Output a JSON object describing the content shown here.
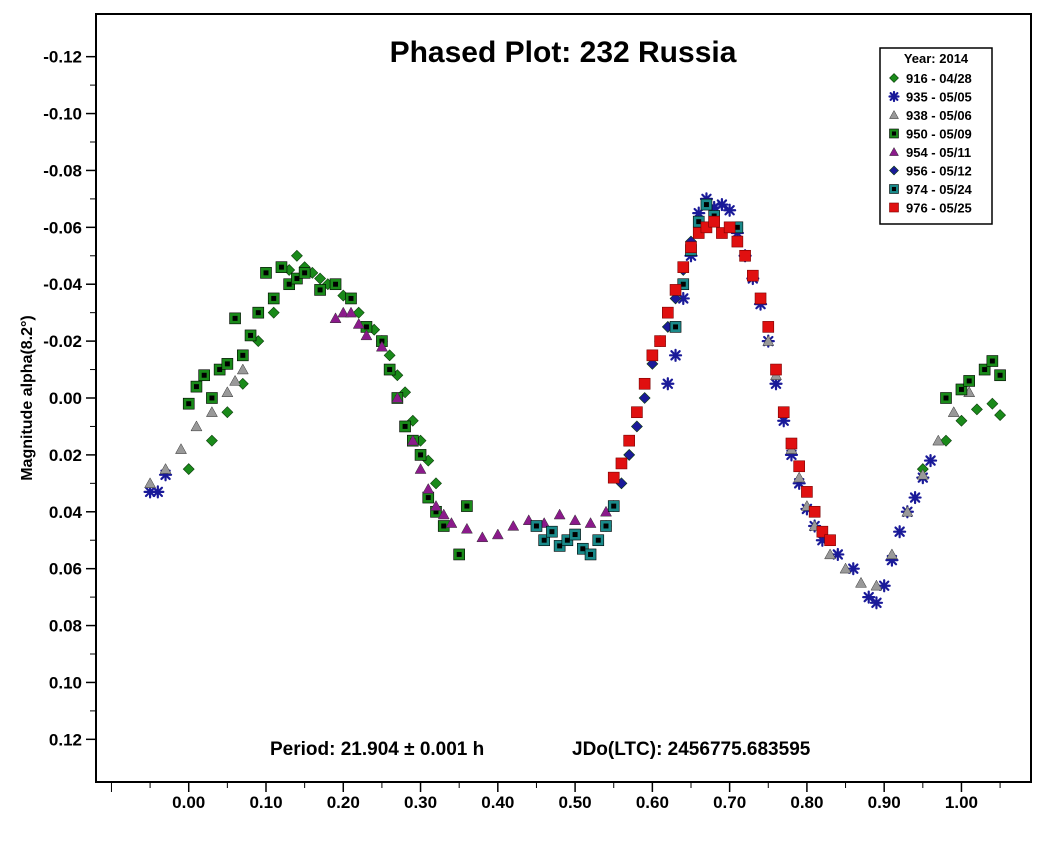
{
  "chart_data": {
    "type": "scatter",
    "title": "Phased Plot: 232 Russia",
    "xlabel": "",
    "ylabel": "Magnitude alpha(8.2°)",
    "footer_period": "Period: 21.904 ± 0.001 h",
    "footer_jdo": "JDo(LTC): 2456775.683595",
    "xlim": [
      -0.12,
      1.09
    ],
    "ylim": [
      -0.135,
      0.135
    ],
    "y_inverted": true,
    "x_ticks": [
      0.0,
      0.1,
      0.2,
      0.3,
      0.4,
      0.5,
      0.6,
      0.7,
      0.8,
      0.9,
      1.0
    ],
    "x_tick_labels": [
      "0.00",
      "0.10",
      "0.20",
      "0.30",
      "0.40",
      "0.50",
      "0.60",
      "0.70",
      "0.80",
      "0.90",
      "1.00"
    ],
    "y_ticks": [
      -0.12,
      -0.1,
      -0.08,
      -0.06,
      -0.04,
      -0.02,
      0.0,
      0.02,
      0.04,
      0.06,
      0.08,
      0.1,
      0.12
    ],
    "y_tick_labels": [
      "-0.12",
      "-0.10",
      "-0.08",
      "-0.06",
      "-0.04",
      "-0.02",
      "0.00",
      "0.02",
      "0.04",
      "0.06",
      "0.08",
      "0.10",
      "0.12"
    ],
    "grid": false,
    "legend_title": "Year: 2014",
    "legend_position": "top-right",
    "series": [
      {
        "name": "916 - 04/28",
        "marker": "diamond",
        "color": "#1a8a1a",
        "points": [
          [
            0.0,
            0.025
          ],
          [
            0.03,
            0.015
          ],
          [
            0.05,
            0.005
          ],
          [
            0.07,
            -0.005
          ],
          [
            0.09,
            -0.02
          ],
          [
            0.11,
            -0.03
          ],
          [
            0.13,
            -0.045
          ],
          [
            0.14,
            -0.05
          ],
          [
            0.15,
            -0.046
          ],
          [
            0.16,
            -0.044
          ],
          [
            0.17,
            -0.042
          ],
          [
            0.18,
            -0.04
          ],
          [
            0.2,
            -0.036
          ],
          [
            0.22,
            -0.03
          ],
          [
            0.24,
            -0.024
          ],
          [
            0.25,
            -0.02
          ],
          [
            0.26,
            -0.015
          ],
          [
            0.27,
            -0.008
          ],
          [
            0.28,
            -0.002
          ],
          [
            0.29,
            0.008
          ],
          [
            0.3,
            0.015
          ],
          [
            0.31,
            0.022
          ],
          [
            0.32,
            0.03
          ],
          [
            0.95,
            0.025
          ],
          [
            0.98,
            0.015
          ],
          [
            1.0,
            0.008
          ],
          [
            1.02,
            0.004
          ],
          [
            1.04,
            0.002
          ],
          [
            1.05,
            0.006
          ]
        ]
      },
      {
        "name": "935 - 05/05",
        "marker": "asterisk",
        "color": "#1a1a99",
        "points": [
          [
            -0.05,
            0.033
          ],
          [
            -0.04,
            0.033
          ],
          [
            -0.03,
            0.027
          ],
          [
            0.62,
            -0.005
          ],
          [
            0.63,
            -0.015
          ],
          [
            0.64,
            -0.035
          ],
          [
            0.65,
            -0.05
          ],
          [
            0.66,
            -0.065
          ],
          [
            0.67,
            -0.07
          ],
          [
            0.68,
            -0.067
          ],
          [
            0.69,
            -0.068
          ],
          [
            0.7,
            -0.066
          ],
          [
            0.71,
            -0.058
          ],
          [
            0.72,
            -0.05
          ],
          [
            0.73,
            -0.042
          ],
          [
            0.74,
            -0.033
          ],
          [
            0.75,
            -0.02
          ],
          [
            0.76,
            -0.005
          ],
          [
            0.77,
            0.008
          ],
          [
            0.78,
            0.02
          ],
          [
            0.79,
            0.03
          ],
          [
            0.8,
            0.039
          ],
          [
            0.81,
            0.045
          ],
          [
            0.82,
            0.05
          ],
          [
            0.84,
            0.055
          ],
          [
            0.86,
            0.06
          ],
          [
            0.88,
            0.07
          ],
          [
            0.89,
            0.072
          ],
          [
            0.9,
            0.066
          ],
          [
            0.91,
            0.057
          ],
          [
            0.92,
            0.047
          ],
          [
            0.93,
            0.04
          ],
          [
            0.94,
            0.035
          ],
          [
            0.95,
            0.028
          ],
          [
            0.96,
            0.022
          ]
        ]
      },
      {
        "name": "938 - 05/06",
        "marker": "triangle",
        "color": "#999999",
        "points": [
          [
            -0.05,
            0.03
          ],
          [
            -0.03,
            0.025
          ],
          [
            -0.01,
            0.018
          ],
          [
            0.01,
            0.01
          ],
          [
            0.03,
            0.005
          ],
          [
            0.05,
            -0.002
          ],
          [
            0.06,
            -0.006
          ],
          [
            0.07,
            -0.01
          ],
          [
            0.75,
            -0.02
          ],
          [
            0.76,
            -0.008
          ],
          [
            0.77,
            0.005
          ],
          [
            0.78,
            0.018
          ],
          [
            0.79,
            0.028
          ],
          [
            0.8,
            0.038
          ],
          [
            0.81,
            0.045
          ],
          [
            0.83,
            0.055
          ],
          [
            0.85,
            0.06
          ],
          [
            0.87,
            0.065
          ],
          [
            0.89,
            0.066
          ],
          [
            0.91,
            0.055
          ],
          [
            0.93,
            0.04
          ],
          [
            0.95,
            0.027
          ],
          [
            0.97,
            0.015
          ],
          [
            0.99,
            0.005
          ],
          [
            1.01,
            -0.002
          ]
        ]
      },
      {
        "name": "950 - 05/09",
        "marker": "square-dot",
        "color": "#1a8a1a",
        "points": [
          [
            0.0,
            0.002
          ],
          [
            0.01,
            -0.004
          ],
          [
            0.02,
            -0.008
          ],
          [
            0.03,
            0.0
          ],
          [
            0.04,
            -0.01
          ],
          [
            0.05,
            -0.012
          ],
          [
            0.06,
            -0.028
          ],
          [
            0.07,
            -0.015
          ],
          [
            0.08,
            -0.022
          ],
          [
            0.09,
            -0.03
          ],
          [
            0.1,
            -0.044
          ],
          [
            0.11,
            -0.035
          ],
          [
            0.12,
            -0.046
          ],
          [
            0.13,
            -0.04
          ],
          [
            0.14,
            -0.042
          ],
          [
            0.15,
            -0.044
          ],
          [
            0.17,
            -0.038
          ],
          [
            0.19,
            -0.04
          ],
          [
            0.21,
            -0.035
          ],
          [
            0.23,
            -0.025
          ],
          [
            0.25,
            -0.02
          ],
          [
            0.26,
            -0.01
          ],
          [
            0.27,
            0.0
          ],
          [
            0.28,
            0.01
          ],
          [
            0.29,
            0.015
          ],
          [
            0.3,
            0.02
          ],
          [
            0.31,
            0.035
          ],
          [
            0.32,
            0.04
          ],
          [
            0.33,
            0.045
          ],
          [
            0.35,
            0.055
          ],
          [
            0.36,
            0.038
          ],
          [
            0.98,
            0.0
          ],
          [
            1.0,
            -0.003
          ],
          [
            1.01,
            -0.006
          ],
          [
            1.03,
            -0.01
          ],
          [
            1.04,
            -0.013
          ],
          [
            1.05,
            -0.008
          ]
        ]
      },
      {
        "name": "954 - 05/11",
        "marker": "triangle",
        "color": "#8b1a8b",
        "points": [
          [
            0.19,
            -0.028
          ],
          [
            0.2,
            -0.03
          ],
          [
            0.21,
            -0.03
          ],
          [
            0.22,
            -0.026
          ],
          [
            0.23,
            -0.022
          ],
          [
            0.25,
            -0.018
          ],
          [
            0.27,
            0.0
          ],
          [
            0.29,
            0.015
          ],
          [
            0.3,
            0.025
          ],
          [
            0.31,
            0.032
          ],
          [
            0.32,
            0.038
          ],
          [
            0.33,
            0.041
          ],
          [
            0.34,
            0.044
          ],
          [
            0.36,
            0.046
          ],
          [
            0.38,
            0.049
          ],
          [
            0.4,
            0.048
          ],
          [
            0.42,
            0.045
          ],
          [
            0.44,
            0.043
          ],
          [
            0.46,
            0.044
          ],
          [
            0.48,
            0.041
          ],
          [
            0.5,
            0.043
          ],
          [
            0.52,
            0.044
          ],
          [
            0.54,
            0.04
          ]
        ]
      },
      {
        "name": "956 - 05/12",
        "marker": "diamond",
        "color": "#1a1a99",
        "points": [
          [
            0.54,
            0.045
          ],
          [
            0.55,
            0.038
          ],
          [
            0.56,
            0.03
          ],
          [
            0.57,
            0.02
          ],
          [
            0.58,
            0.01
          ],
          [
            0.59,
            0.0
          ],
          [
            0.6,
            -0.012
          ],
          [
            0.61,
            -0.02
          ],
          [
            0.62,
            -0.025
          ],
          [
            0.63,
            -0.035
          ],
          [
            0.64,
            -0.045
          ],
          [
            0.65,
            -0.055
          ]
        ]
      },
      {
        "name": "974 - 05/24",
        "marker": "square-dot",
        "color": "#1a8a8a",
        "points": [
          [
            0.45,
            0.045
          ],
          [
            0.46,
            0.05
          ],
          [
            0.47,
            0.047
          ],
          [
            0.48,
            0.052
          ],
          [
            0.49,
            0.05
          ],
          [
            0.5,
            0.048
          ],
          [
            0.51,
            0.053
          ],
          [
            0.52,
            0.055
          ],
          [
            0.53,
            0.05
          ],
          [
            0.54,
            0.045
          ],
          [
            0.55,
            0.038
          ],
          [
            0.63,
            -0.025
          ],
          [
            0.64,
            -0.04
          ],
          [
            0.65,
            -0.052
          ],
          [
            0.66,
            -0.062
          ],
          [
            0.67,
            -0.068
          ],
          [
            0.68,
            -0.064
          ],
          [
            0.71,
            -0.06
          ]
        ]
      },
      {
        "name": "976 - 05/25",
        "marker": "square",
        "color": "#e01010",
        "points": [
          [
            0.55,
            0.028
          ],
          [
            0.56,
            0.023
          ],
          [
            0.57,
            0.015
          ],
          [
            0.58,
            0.005
          ],
          [
            0.59,
            -0.005
          ],
          [
            0.6,
            -0.015
          ],
          [
            0.61,
            -0.02
          ],
          [
            0.62,
            -0.03
          ],
          [
            0.63,
            -0.038
          ],
          [
            0.64,
            -0.046
          ],
          [
            0.65,
            -0.053
          ],
          [
            0.66,
            -0.058
          ],
          [
            0.67,
            -0.06
          ],
          [
            0.68,
            -0.062
          ],
          [
            0.69,
            -0.058
          ],
          [
            0.7,
            -0.06
          ],
          [
            0.71,
            -0.055
          ],
          [
            0.72,
            -0.05
          ],
          [
            0.73,
            -0.043
          ],
          [
            0.74,
            -0.035
          ],
          [
            0.75,
            -0.025
          ],
          [
            0.76,
            -0.01
          ],
          [
            0.77,
            0.005
          ],
          [
            0.78,
            0.016
          ],
          [
            0.79,
            0.024
          ],
          [
            0.8,
            0.033
          ],
          [
            0.81,
            0.04
          ],
          [
            0.82,
            0.047
          ],
          [
            0.83,
            0.05
          ]
        ]
      }
    ]
  }
}
